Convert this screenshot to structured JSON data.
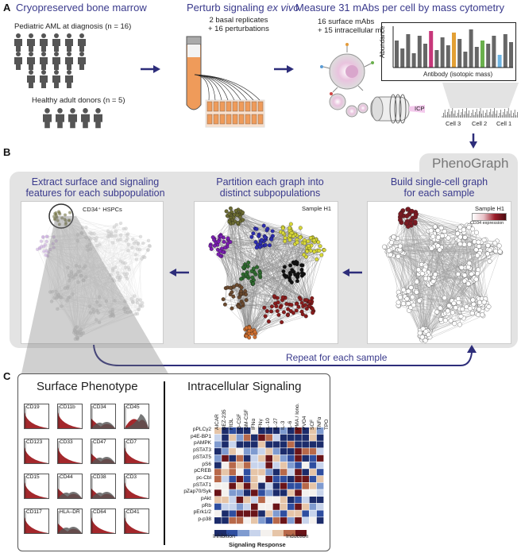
{
  "panels": {
    "a": "A",
    "b": "B",
    "c": "C"
  },
  "sectionA": {
    "step1_title": "Cryopreserved bone marrow",
    "step2_title_prefix": "Perturb signaling ",
    "step2_title_em": "ex vivo",
    "step3_title": "Measure 31 mAbs per cell by mass cytometry",
    "aml_label": "Pediatric AML at diagnosis (n = 16)",
    "healthy_label": "Healthy adult donors (n = 5)",
    "replicates_line1": "2 basal replicates",
    "replicates_line2": "+ 16 perturbations",
    "mabs_line1": "16 surface mAbs",
    "mabs_line2": "+ 15 intracellular mAbs",
    "abundance_label": "Abundance",
    "antibody_label": "Antibody (isotopic mass)",
    "icp_label": "ICP",
    "cells": [
      "Cell 3",
      "Cell 2",
      "Cell 1"
    ]
  },
  "sectionB": {
    "phenograph": "PhenoGraph",
    "col1_title_l1": "Extract surface and signaling",
    "col1_title_l2": "features for each subpopulation",
    "col2_title_l1": "Partition each graph into",
    "col2_title_l2": "distinct subpopulations",
    "col3_title_l1": "Build single-cell graph",
    "col3_title_l2": "for each sample",
    "hspc_label": "CD34⁺ HSPCs",
    "sample_label": "Sample H1",
    "cd34_expr": "CD34 expression",
    "repeat_label": "Repeat for each sample"
  },
  "sectionC": {
    "surface_title": "Surface Phenotype",
    "intracellular_title": "Intracellular Signaling",
    "surface_markers": [
      "CD19",
      "CD11b",
      "CD34",
      "CD45",
      "CD123",
      "CD33",
      "CD47",
      "CD7",
      "CD15",
      "CD44",
      "CD38",
      "CD3",
      "CD117",
      "HLA–DR",
      "CD64",
      "CD41"
    ],
    "heatmap_cols": [
      "AICAR",
      "BEZ-235",
      "Flt3L",
      "G-CSF",
      "GM-CSF",
      "IFNα",
      "IFNγ",
      "IL-10",
      "IL-27",
      "IL-3",
      "IL-6",
      "PMA / Iono.",
      "PVO4",
      "SCF",
      "TNFα",
      "TPO"
    ],
    "heatmap_rows": [
      "pPLCγ2",
      "p4E-BP1",
      "pAMPK",
      "pSTAT3",
      "pSTAT5",
      "pS6",
      "pCREB",
      "pc-Cbl",
      "pSTAT1",
      "pZap70/Syk",
      "pAkt",
      "pRb",
      "pErk1/2",
      "p-p38"
    ],
    "inhibition": "Inhibition",
    "induction": "Induction",
    "signaling_response": "Signaling Response"
  },
  "colors": {
    "accent": "#3a3a8c",
    "panelGray": "#e3e3e3",
    "dark": "#6b0f14",
    "blue": "#1f3f8a"
  }
}
